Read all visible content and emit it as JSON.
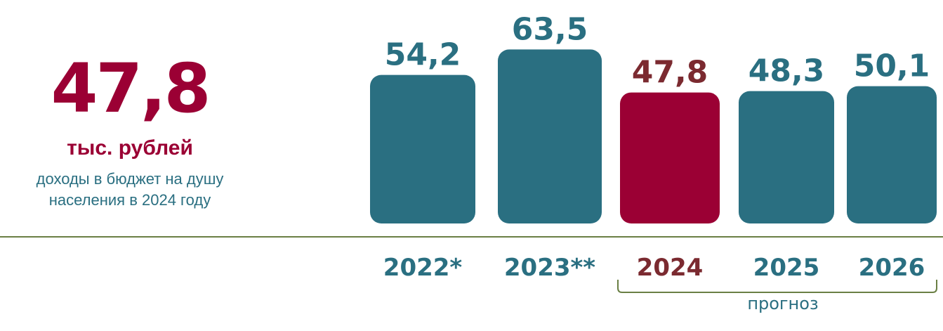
{
  "kpi": {
    "value": "47,8",
    "unit": "тыс. рублей",
    "description": "доходы в бюджет  на душу\nнаселения  в 2024 году"
  },
  "colors": {
    "bar_default": "#2a6f81",
    "bar_highlight": "#9b0034",
    "label_highlight": "#7b2a30",
    "baseline": "#6a7f44"
  },
  "chart_data": {
    "type": "bar",
    "categories": [
      "2022*",
      "2023**",
      "2024",
      "2025",
      "2026"
    ],
    "values": [
      54.2,
      63.5,
      47.8,
      48.3,
      50.1
    ],
    "value_labels": [
      "54,2",
      "63,5",
      "47,8",
      "48,3",
      "50,1"
    ],
    "highlight_index": 2,
    "forecast_label": "прогноз",
    "forecast_categories": [
      "2024",
      "2025",
      "2026"
    ]
  }
}
